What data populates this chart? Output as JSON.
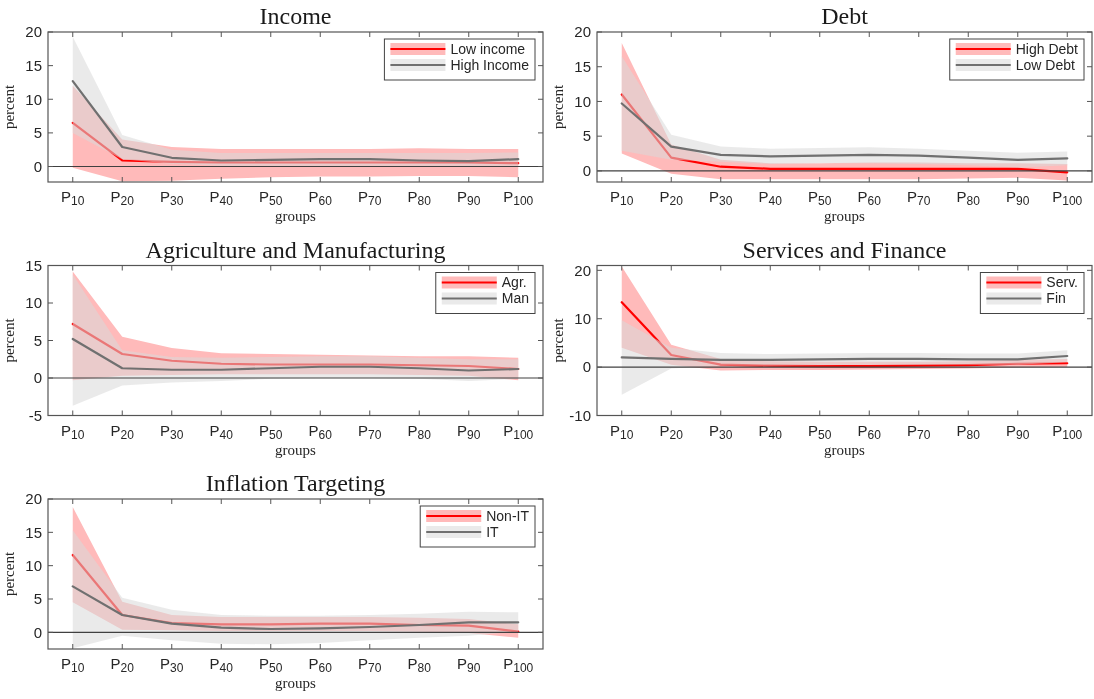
{
  "chart_data": [
    {
      "type": "line",
      "title": "Income",
      "xlabel": "groups",
      "ylabel": "percent",
      "categories": [
        "P$_{10}$",
        "P$_{20}$",
        "P$_{30}$",
        "P$_{40}$",
        "P$_{50}$",
        "P$_{60}$",
        "P$_{70}$",
        "P$_{80}$",
        "P$_{90}$",
        "P$_{100}$"
      ],
      "ylim": [
        -2.3,
        20
      ],
      "yticks": [
        0,
        5,
        10,
        15,
        20
      ],
      "legend": "top right",
      "ref_lines": [
        {
          "axis": "y",
          "value": 0,
          "color": "#404040"
        }
      ],
      "series": [
        {
          "name": "Low income",
          "color": "#ff0000",
          "values": [
            6.5,
            0.9,
            0.7,
            0.6,
            0.6,
            0.6,
            0.6,
            0.6,
            0.6,
            0.5
          ],
          "lower": [
            -0.2,
            -2.2,
            -2.1,
            -1.8,
            -1.6,
            -1.5,
            -1.5,
            -1.4,
            -1.4,
            -1.6
          ],
          "upper": [
            12,
            4.0,
            2.9,
            2.6,
            2.6,
            2.6,
            2.6,
            2.7,
            2.6,
            2.6
          ]
        },
        {
          "name": "High Income",
          "color": "#707070",
          "values": [
            12.7,
            2.9,
            1.3,
            0.9,
            1.0,
            1.1,
            1.1,
            0.9,
            0.8,
            1.1
          ],
          "lower": [
            5,
            1.1,
            0.4,
            0.1,
            0.1,
            0.1,
            0.1,
            0.1,
            0.1,
            0.1
          ],
          "upper": [
            19.3,
            4.7,
            2.5,
            2.0,
            2.0,
            2.0,
            2.0,
            2.0,
            2.0,
            2.1
          ]
        }
      ]
    },
    {
      "type": "line",
      "title": "Debt",
      "xlabel": "groups",
      "ylabel": "percent",
      "categories": [
        "P$_{10}$",
        "P$_{20}$",
        "P$_{30}$",
        "P$_{40}$",
        "P$_{50}$",
        "P$_{60}$",
        "P$_{70}$",
        "P$_{80}$",
        "P$_{90}$",
        "P$_{100}$"
      ],
      "ylim": [
        -1.6,
        20
      ],
      "yticks": [
        0,
        5,
        10,
        15,
        20
      ],
      "legend": "top right",
      "ref_lines": [
        {
          "axis": "y",
          "value": 0,
          "color": "#404040"
        }
      ],
      "series": [
        {
          "name": "High Debt",
          "color": "#ff0000",
          "values": [
            11.0,
            1.9,
            0.6,
            0.3,
            0.3,
            0.3,
            0.3,
            0.3,
            0.3,
            -0.2
          ],
          "lower": [
            2.5,
            -0.4,
            -1.2,
            -1.2,
            -1.2,
            -1.2,
            -1.2,
            -1.1,
            -1.0,
            -1.4
          ],
          "upper": [
            18.4,
            3.8,
            1.6,
            1.1,
            1.1,
            1.2,
            1.2,
            1.1,
            1.1,
            1.0
          ]
        },
        {
          "name": "Low Debt",
          "color": "#707070",
          "values": [
            9.7,
            3.5,
            2.3,
            2.1,
            2.2,
            2.3,
            2.2,
            1.9,
            1.6,
            1.8
          ],
          "lower": [
            2.9,
            1.6,
            1.3,
            1.0,
            1.1,
            1.1,
            1.0,
            0.8,
            0.5,
            0.8
          ],
          "upper": [
            16.5,
            5.2,
            3.5,
            3.2,
            3.3,
            3.4,
            3.2,
            2.9,
            2.6,
            2.8
          ]
        }
      ]
    },
    {
      "type": "line",
      "title": "Agriculture and Manufacturing",
      "xlabel": "groups",
      "ylabel": "percent",
      "categories": [
        "P$_{10}$",
        "P$_{20}$",
        "P$_{30}$",
        "P$_{40}$",
        "P$_{50}$",
        "P$_{60}$",
        "P$_{70}$",
        "P$_{80}$",
        "P$_{90}$",
        "P$_{100}$"
      ],
      "ylim": [
        -5,
        15
      ],
      "yticks": [
        -5,
        0,
        5,
        10,
        15
      ],
      "legend": "top right",
      "ref_lines": [
        {
          "axis": "y",
          "value": 0,
          "color": "#404040"
        }
      ],
      "series": [
        {
          "name": "Agr.",
          "color": "#ff0000",
          "values": [
            7.2,
            3.2,
            2.3,
            1.9,
            1.8,
            1.8,
            1.8,
            1.7,
            1.6,
            1.2
          ],
          "lower": [
            -0.3,
            0.3,
            0.4,
            0.5,
            0.5,
            0.5,
            0.5,
            0.4,
            0.3,
            -0.3
          ],
          "upper": [
            14.2,
            5.5,
            4.0,
            3.3,
            3.2,
            3.1,
            3.0,
            2.9,
            2.9,
            2.7
          ]
        },
        {
          "name": "Man",
          "color": "#707070",
          "values": [
            5.2,
            1.3,
            1.1,
            1.1,
            1.3,
            1.5,
            1.5,
            1.3,
            1.0,
            1.2
          ],
          "lower": [
            -3.7,
            -1.0,
            -0.6,
            -0.4,
            -0.1,
            0,
            0,
            -0.1,
            -0.4,
            -0.1
          ],
          "upper": [
            13.8,
            3.7,
            2.8,
            2.7,
            2.8,
            2.9,
            2.9,
            2.7,
            2.5,
            2.5
          ]
        }
      ]
    },
    {
      "type": "line",
      "title": "Services and Finance",
      "xlabel": "groups",
      "ylabel": "percent",
      "categories": [
        "P$_{10}$",
        "P$_{20}$",
        "P$_{30}$",
        "P$_{40}$",
        "P$_{50}$",
        "P$_{60}$",
        "P$_{70}$",
        "P$_{80}$",
        "P$_{90}$",
        "P$_{100}$"
      ],
      "ylim": [
        -10,
        21
      ],
      "yticks": [
        -10,
        0,
        10,
        20
      ],
      "legend": "top right",
      "ref_lines": [
        {
          "axis": "y",
          "value": 0,
          "color": "#404040"
        }
      ],
      "series": [
        {
          "name": "Serv.",
          "color": "#ff0000",
          "values": [
            13.4,
            2.5,
            0.5,
            0.3,
            0.2,
            0.2,
            0.3,
            0.4,
            0.7,
            0.8
          ],
          "lower": [
            4.0,
            0.5,
            -0.7,
            -0.6,
            -0.6,
            -0.5,
            -0.4,
            -0.3,
            -0.1,
            0
          ],
          "upper": [
            20.8,
            4.6,
            1.7,
            1.2,
            1.1,
            1.1,
            1.1,
            1.2,
            1.5,
            1.7
          ]
        },
        {
          "name": "Fin",
          "color": "#707070",
          "values": [
            2.0,
            1.7,
            1.5,
            1.5,
            1.6,
            1.7,
            1.7,
            1.6,
            1.6,
            2.3
          ],
          "lower": [
            -5.7,
            -0.3,
            0.3,
            0.3,
            0.4,
            0.5,
            0.5,
            0.5,
            0.5,
            1.0
          ],
          "upper": [
            9.7,
            4.0,
            2.9,
            2.7,
            2.8,
            2.9,
            2.9,
            2.8,
            2.8,
            3.5
          ]
        }
      ]
    },
    {
      "type": "line",
      "title": "Inflation Targeting",
      "xlabel": "groups",
      "ylabel": "percent",
      "categories": [
        "P$_{10}$",
        "P$_{20}$",
        "P$_{30}$",
        "P$_{40}$",
        "P$_{50}$",
        "P$_{60}$",
        "P$_{70}$",
        "P$_{80}$",
        "P$_{90}$",
        "P$_{100}$"
      ],
      "ylim": [
        -2.5,
        20
      ],
      "yticks": [
        0,
        5,
        10,
        15,
        20
      ],
      "legend": "top right",
      "ref_lines": [
        {
          "axis": "y",
          "value": 0,
          "color": "#404040"
        }
      ],
      "series": [
        {
          "name": "Non-IT",
          "color": "#ff0000",
          "values": [
            11.6,
            2.6,
            1.4,
            1.2,
            1.2,
            1.3,
            1.3,
            1.1,
            1.0,
            0.1
          ],
          "lower": [
            4.5,
            0.4,
            0.3,
            0.2,
            0.2,
            0.2,
            0.2,
            0.1,
            -0.1,
            -0.8
          ],
          "upper": [
            18.8,
            4.6,
            2.6,
            2.3,
            2.3,
            2.3,
            2.3,
            2.2,
            2.0,
            1.2
          ]
        },
        {
          "name": "IT",
          "color": "#707070",
          "values": [
            6.9,
            2.6,
            1.3,
            0.7,
            0.5,
            0.6,
            0.8,
            1.1,
            1.5,
            1.5
          ],
          "lower": [
            -2.4,
            -0.5,
            -1.2,
            -1.7,
            -1.8,
            -1.6,
            -1.2,
            -0.8,
            -0.5,
            0.1
          ],
          "upper": [
            15.3,
            5.2,
            3.4,
            2.6,
            2.5,
            2.5,
            2.6,
            2.8,
            3.1,
            3.0
          ]
        }
      ]
    }
  ]
}
